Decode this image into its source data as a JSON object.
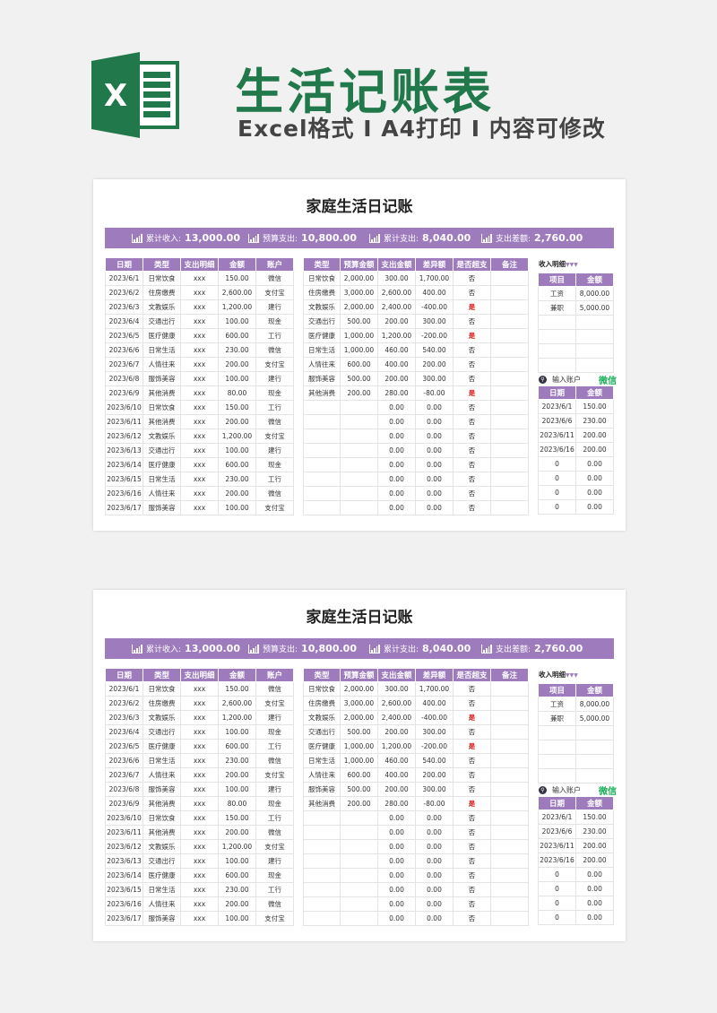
{
  "header": {
    "title": "生活记账表",
    "subtitle": "Excel格式 I A4打印 I 内容可修改",
    "logo_letter": "X",
    "brand_color": "#21784a"
  },
  "sheet": {
    "title": "家庭生活日记账",
    "accent_color": "#9d7bbd",
    "summary": [
      {
        "label": "累计收入:",
        "value": "13,000.00",
        "icon": "income-chart-icon"
      },
      {
        "label": "预算支出:",
        "value": "10,800.00",
        "icon": "budget-chart-icon"
      },
      {
        "label": "累计支出:",
        "value": "8,040.00",
        "icon": "expense-chart-icon"
      },
      {
        "label": "支出差额:",
        "value": "2,760.00",
        "icon": "difference-chart-icon"
      }
    ],
    "expense_table": {
      "headers": [
        "日期",
        "类型",
        "支出明细",
        "金额",
        "账户"
      ],
      "rows": [
        [
          "2023/6/1",
          "日常饮食",
          "xxx",
          "150.00",
          "微信"
        ],
        [
          "2023/6/2",
          "住房缴费",
          "xxx",
          "2,600.00",
          "支付宝"
        ],
        [
          "2023/6/3",
          "文教娱乐",
          "xxx",
          "1,200.00",
          "建行"
        ],
        [
          "2023/6/4",
          "交通出行",
          "xxx",
          "100.00",
          "现金"
        ],
        [
          "2023/6/5",
          "医疗健康",
          "xxx",
          "600.00",
          "工行"
        ],
        [
          "2023/6/6",
          "日常生活",
          "xxx",
          "230.00",
          "微信"
        ],
        [
          "2023/6/7",
          "人情往来",
          "xxx",
          "200.00",
          "支付宝"
        ],
        [
          "2023/6/8",
          "服饰美容",
          "xxx",
          "100.00",
          "建行"
        ],
        [
          "2023/6/9",
          "其他消费",
          "xxx",
          "80.00",
          "现金"
        ],
        [
          "2023/6/10",
          "日常饮食",
          "xxx",
          "150.00",
          "工行"
        ],
        [
          "2023/6/11",
          "其他消费",
          "xxx",
          "200.00",
          "微信"
        ],
        [
          "2023/6/12",
          "文教娱乐",
          "xxx",
          "1,200.00",
          "支付宝"
        ],
        [
          "2023/6/13",
          "交通出行",
          "xxx",
          "100.00",
          "建行"
        ],
        [
          "2023/6/14",
          "医疗健康",
          "xxx",
          "600.00",
          "现金"
        ],
        [
          "2023/6/15",
          "日常生活",
          "xxx",
          "230.00",
          "工行"
        ],
        [
          "2023/6/16",
          "人情往来",
          "xxx",
          "200.00",
          "微信"
        ],
        [
          "2023/6/17",
          "服饰美容",
          "xxx",
          "100.00",
          "支付宝"
        ]
      ]
    },
    "budget_table": {
      "headers": [
        "类型",
        "预算金额",
        "支出金额",
        "差异额",
        "是否超支",
        "备注"
      ],
      "rows": [
        [
          "日常饮食",
          "2,000.00",
          "300.00",
          "1,700.00",
          "否",
          ""
        ],
        [
          "住房缴费",
          "3,000.00",
          "2,600.00",
          "400.00",
          "否",
          ""
        ],
        [
          "文教娱乐",
          "2,000.00",
          "2,400.00",
          "-400.00",
          "是",
          ""
        ],
        [
          "交通出行",
          "500.00",
          "200.00",
          "300.00",
          "否",
          ""
        ],
        [
          "医疗健康",
          "1,000.00",
          "1,200.00",
          "-200.00",
          "是",
          ""
        ],
        [
          "日常生活",
          "1,000.00",
          "460.00",
          "540.00",
          "否",
          ""
        ],
        [
          "人情往来",
          "600.00",
          "400.00",
          "200.00",
          "否",
          ""
        ],
        [
          "服饰美容",
          "500.00",
          "200.00",
          "300.00",
          "否",
          ""
        ],
        [
          "其他消费",
          "200.00",
          "280.00",
          "-80.00",
          "是",
          ""
        ],
        [
          "",
          "",
          "0.00",
          "0.00",
          "否",
          ""
        ],
        [
          "",
          "",
          "0.00",
          "0.00",
          "否",
          ""
        ],
        [
          "",
          "",
          "0.00",
          "0.00",
          "否",
          ""
        ],
        [
          "",
          "",
          "0.00",
          "0.00",
          "否",
          ""
        ],
        [
          "",
          "",
          "0.00",
          "0.00",
          "否",
          ""
        ],
        [
          "",
          "",
          "0.00",
          "0.00",
          "否",
          ""
        ],
        [
          "",
          "",
          "0.00",
          "0.00",
          "否",
          ""
        ],
        [
          "",
          "",
          "0.00",
          "0.00",
          "否",
          ""
        ]
      ],
      "overspend_color": "#e02020"
    },
    "income": {
      "label": "收入明细",
      "marker": "▼▼▼",
      "headers": [
        "项目",
        "金额"
      ],
      "rows": [
        [
          "工资",
          "8,000.00"
        ],
        [
          "兼职",
          "5,000.00"
        ],
        [
          "",
          ""
        ],
        [
          "",
          ""
        ],
        [
          "",
          ""
        ],
        [
          "",
          ""
        ]
      ]
    },
    "account_lookup": {
      "label": "输入账户",
      "value": "微信",
      "headers": [
        "日期",
        "金额"
      ],
      "rows": [
        [
          "2023/6/1",
          "150.00"
        ],
        [
          "2023/6/6",
          "230.00"
        ],
        [
          "2023/6/11",
          "200.00"
        ],
        [
          "2023/6/16",
          "200.00"
        ],
        [
          "0",
          "0.00"
        ],
        [
          "0",
          "0.00"
        ],
        [
          "0",
          "0.00"
        ],
        [
          "0",
          "0.00"
        ]
      ]
    }
  }
}
